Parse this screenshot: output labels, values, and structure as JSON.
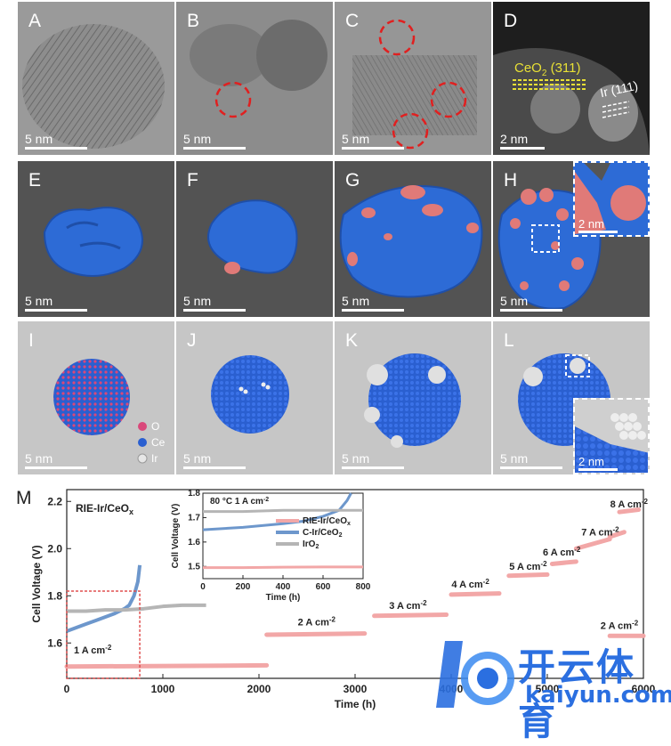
{
  "panels": {
    "A": {
      "label": "A",
      "scale": "5 nm"
    },
    "B": {
      "label": "B",
      "scale": "5 nm"
    },
    "C": {
      "label": "C",
      "scale": "5 nm"
    },
    "D": {
      "label": "D",
      "scale": "2 nm",
      "ceo2_label": "CeO",
      "ceo2_sub": "2",
      "ceo2_plane": " (311)",
      "ir_label": "Ir (111)"
    },
    "E": {
      "label": "E",
      "scale": "5 nm"
    },
    "F": {
      "label": "F",
      "scale": "5 nm"
    },
    "G": {
      "label": "G",
      "scale": "5 nm"
    },
    "H": {
      "label": "H",
      "scale": "5 nm",
      "inset_scale": "2 nm"
    },
    "I": {
      "label": "I",
      "scale": "5 nm",
      "legend": [
        "O",
        "Ce",
        "Ir"
      ]
    },
    "J": {
      "label": "J",
      "scale": "5 nm"
    },
    "K": {
      "label": "K",
      "scale": "5 nm"
    },
    "L": {
      "label": "L",
      "scale": "5 nm",
      "inset_scale": "2 nm"
    }
  },
  "colors": {
    "O": "#d9487a",
    "Ce": "#2a5fd0",
    "Ir": "#d8d8d8",
    "surface_blue": "#2d6bd6",
    "surface_pink": "#e07a78"
  },
  "chart_data": {
    "label": "M",
    "type": "line",
    "xlabel": "Time (h)",
    "ylabel": "Cell Voltage (V)",
    "xlim": [
      0,
      6000
    ],
    "ylim": [
      1.45,
      2.25
    ],
    "xticks": [
      "0",
      "1000",
      "2000",
      "3000",
      "4000",
      "5000",
      "6000"
    ],
    "yticks": [
      "1.6",
      "1.8",
      "2.0",
      "2.2"
    ],
    "sample_label": "RIE-Ir/CeO",
    "sample_sub": "x",
    "series": [
      {
        "name": "RIE-Ir/CeOx",
        "color": "#f2a7a7",
        "segments": [
          {
            "x": [
              0,
              2080
            ],
            "y": [
              1.5,
              1.505
            ]
          },
          {
            "x": [
              2080,
              3100
            ],
            "y": [
              1.635,
              1.64
            ]
          },
          {
            "x": [
              3200,
              3950
            ],
            "y": [
              1.715,
              1.72
            ]
          },
          {
            "x": [
              4000,
              4500
            ],
            "y": [
              1.805,
              1.81
            ]
          },
          {
            "x": [
              4600,
              5000
            ],
            "y": [
              1.885,
              1.89
            ]
          },
          {
            "x": [
              5050,
              5300
            ],
            "y": [
              1.935,
              1.945
            ]
          },
          {
            "x": [
              5300,
              5650
            ],
            "y": [
              2.0,
              2.04
            ]
          },
          {
            "x": [
              5650,
              5800
            ],
            "y": [
              2.05,
              2.07
            ]
          },
          {
            "x": [
              5750,
              5950
            ],
            "y": [
              2.155,
              2.165
            ]
          },
          {
            "x": [
              5650,
              6000
            ],
            "y": [
              1.63,
              1.63
            ]
          }
        ]
      },
      {
        "name": "C-Ir/CeO2",
        "color": "#6d97cc",
        "x": [
          0,
          100,
          200,
          300,
          400,
          500,
          600,
          650,
          700,
          740,
          760
        ],
        "y": [
          1.65,
          1.665,
          1.68,
          1.695,
          1.71,
          1.725,
          1.745,
          1.76,
          1.8,
          1.86,
          1.93
        ]
      },
      {
        "name": "IrO2",
        "color": "#b5b5b5",
        "x": [
          0,
          200,
          400,
          600,
          800,
          1000,
          1200,
          1450
        ],
        "y": [
          1.735,
          1.735,
          1.74,
          1.74,
          1.745,
          1.755,
          1.76,
          1.76
        ]
      }
    ],
    "annotations": [
      "1 A cm",
      "2 A cm",
      "3 A cm",
      "4 A cm",
      "5 A cm",
      "6 A cm",
      "7 A cm",
      "8 A cm",
      "2 A cm"
    ],
    "annotation_sup": "-2",
    "inset": {
      "title": "80 °C  1 A cm",
      "title_sup": "-2",
      "xlabel": "Time (h)",
      "ylabel": "Cell Voltage (V)",
      "xlim": [
        0,
        800
      ],
      "ylim": [
        1.45,
        1.8
      ],
      "xticks": [
        "0",
        "200",
        "400",
        "600",
        "800"
      ],
      "yticks": [
        "1.5",
        "1.6",
        "1.7",
        "1.8"
      ],
      "legend": [
        "RIE-Ir/CeO",
        "C-Ir/CeO",
        "IrO"
      ],
      "legend_subs": [
        "x",
        "2",
        "2"
      ]
    }
  },
  "watermark": {
    "brand": "开云体育",
    "url": "kaiyun.com"
  }
}
